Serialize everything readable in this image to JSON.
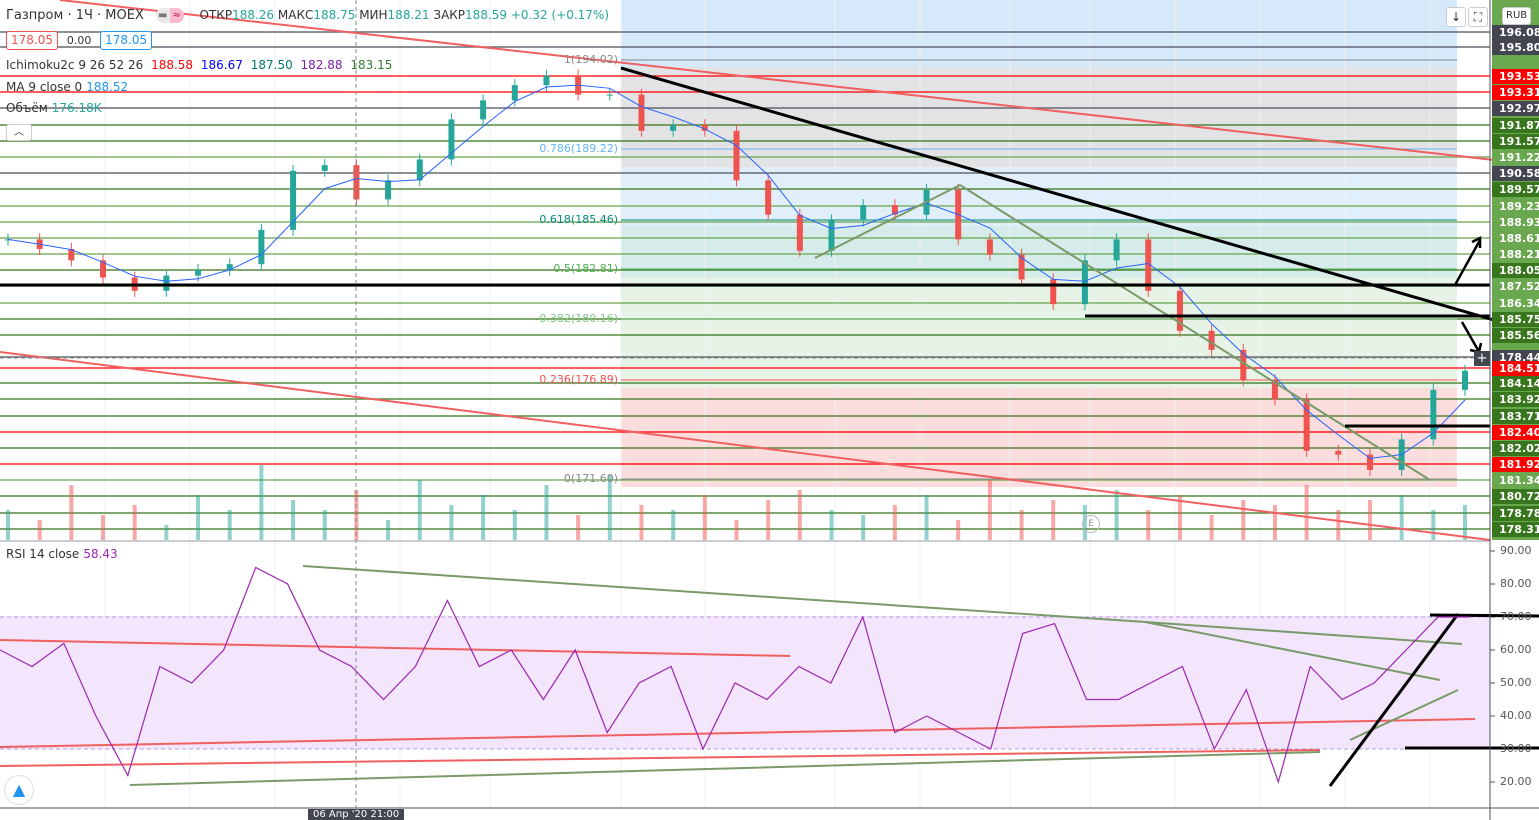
{
  "header": {
    "symbol": "Газпром · 1Ч · MOEX",
    "open_label": "ОТКР",
    "open": "188.26",
    "high_label": "МАКС",
    "high": "188.75",
    "low_label": "МИН",
    "low": "188.21",
    "close_label": "ЗАКР",
    "close": "188.59",
    "change": "+0.32 (+0.17%)",
    "sell_price": "178.05",
    "spread": "0.00",
    "buy_price": "178.05",
    "currency": "RUB"
  },
  "indicators": {
    "ichimoku": {
      "label": "Ichimoku2c 9 26 52 26",
      "values": [
        "188.58",
        "186.67",
        "187.50",
        "182.88",
        "183.15"
      ],
      "colors": [
        "#ff0000",
        "#0000ff",
        "#00796b",
        "#7b1fa2",
        "#2e7d32"
      ]
    },
    "ma": {
      "label": "MA 9 close 0",
      "value": "188.52"
    },
    "volume": {
      "label": "Объём",
      "value": "176.18K"
    },
    "rsi": {
      "label": "RSI 14 close",
      "value": "58.43"
    }
  },
  "fib_levels": [
    {
      "label": "1(194.02)",
      "color": "#888888"
    },
    {
      "label": "0.786(189.22)",
      "color": "#64b5f6"
    },
    {
      "label": "0.618(185.46)",
      "color": "#00897b"
    },
    {
      "label": "0.5(182.81)",
      "color": "#4caf50"
    },
    {
      "label": "0.382(180.16)",
      "color": "#81c784"
    },
    {
      "label": "0.236(176.89)",
      "color": "#ef5350"
    },
    {
      "label": "0(171.60)",
      "color": "#888888"
    }
  ],
  "price_axis": [
    {
      "text": "196.08",
      "color": "#434651"
    },
    {
      "text": "195.80",
      "color": "#434651"
    },
    {
      "text": "193.53",
      "color": "#ff0000"
    },
    {
      "text": "193.31",
      "color": "#ff0000"
    },
    {
      "text": "192.97",
      "color": "#434651"
    },
    {
      "text": "191.87",
      "color": "#38761d"
    },
    {
      "text": "191.57",
      "color": "#38761d"
    },
    {
      "text": "191.22",
      "color": "#6aa84f"
    },
    {
      "text": "190.58",
      "color": "#434651"
    },
    {
      "text": "189.57",
      "color": "#38761d"
    },
    {
      "text": "189.23",
      "color": "#6aa84f"
    },
    {
      "text": "188.93",
      "color": "#6aa84f"
    },
    {
      "text": "188.61",
      "color": "#6aa84f"
    },
    {
      "text": "188.21",
      "color": "#6aa84f"
    },
    {
      "text": "188.05",
      "color": "#38761d"
    },
    {
      "text": "187.52",
      "color": "#6aa84f"
    },
    {
      "text": "186.34",
      "color": "#6aa84f"
    },
    {
      "text": "185.75",
      "color": "#38761d"
    },
    {
      "text": "185.56",
      "color": "#38761d"
    },
    {
      "text": "178.44",
      "color": "#434651"
    },
    {
      "text": "184.51",
      "color": "#ff0000"
    },
    {
      "text": "184.14",
      "color": "#38761d"
    },
    {
      "text": "183.92",
      "color": "#38761d"
    },
    {
      "text": "183.71",
      "color": "#38761d"
    },
    {
      "text": "182.40",
      "color": "#ff0000"
    },
    {
      "text": "182.02",
      "color": "#38761d"
    },
    {
      "text": "181.92",
      "color": "#ff0000"
    },
    {
      "text": "181.34",
      "color": "#6aa84f"
    },
    {
      "text": "180.72",
      "color": "#38761d"
    },
    {
      "text": "178.78",
      "color": "#38761d"
    },
    {
      "text": "178.31",
      "color": "#38761d"
    }
  ],
  "rsi_axis": [
    "90.00",
    "80.00",
    "70.00",
    "60.00",
    "50.00",
    "40.00",
    "30.00",
    "20.00"
  ],
  "time_axis": {
    "crosshair_label": "06 Апр '20  21:00"
  },
  "colors": {
    "up": "#26a69a",
    "down": "#ef5350",
    "rsi": "#9c27b0",
    "ma": "#2962ff",
    "rsi_band": "#f3e5fc"
  },
  "chart_data": [
    {
      "type": "candlestick",
      "title": "Газпром · 1Ч · MOEX",
      "ylim": [
        171.6,
        194.02
      ],
      "closes": [
        184.6,
        184.1,
        183.5,
        182.6,
        181.9,
        182.7,
        183.0,
        183.3,
        185.1,
        188.2,
        188.5,
        186.7,
        187.7,
        188.8,
        190.9,
        191.9,
        192.7,
        193.2,
        192.2,
        192.2,
        190.3,
        190.6,
        190.3,
        187.7,
        185.9,
        184.0,
        185.6,
        186.4,
        185.9,
        187.2,
        184.6,
        183.8,
        182.5,
        181.2,
        183.5,
        184.6,
        181.9,
        179.8,
        178.8,
        177.2,
        176.2,
        173.5,
        173.3,
        172.5,
        174.1,
        176.7,
        177.7
      ],
      "volume_k": [
        60,
        40,
        110,
        50,
        70,
        30,
        90,
        60,
        150,
        80,
        60,
        100,
        40,
        120,
        70,
        90,
        60,
        110,
        50,
        130,
        70,
        60,
        90,
        40,
        80,
        100,
        60,
        50,
        70,
        90,
        40,
        120,
        60,
        80,
        70,
        100,
        60,
        90,
        50,
        80,
        70,
        110,
        60,
        80,
        90,
        60,
        70
      ]
    },
    {
      "type": "line",
      "title": "RSI 14 close",
      "ylim": [
        15,
        92
      ],
      "values": [
        60,
        55,
        62,
        40,
        22,
        55,
        50,
        60,
        85,
        80,
        60,
        55,
        45,
        55,
        75,
        55,
        60,
        45,
        60,
        35,
        50,
        55,
        30,
        50,
        45,
        55,
        50,
        70,
        35,
        40,
        35,
        30,
        65,
        68,
        45,
        45,
        50,
        55,
        30,
        48,
        20,
        55,
        45,
        50,
        60,
        70,
        70
      ]
    }
  ]
}
